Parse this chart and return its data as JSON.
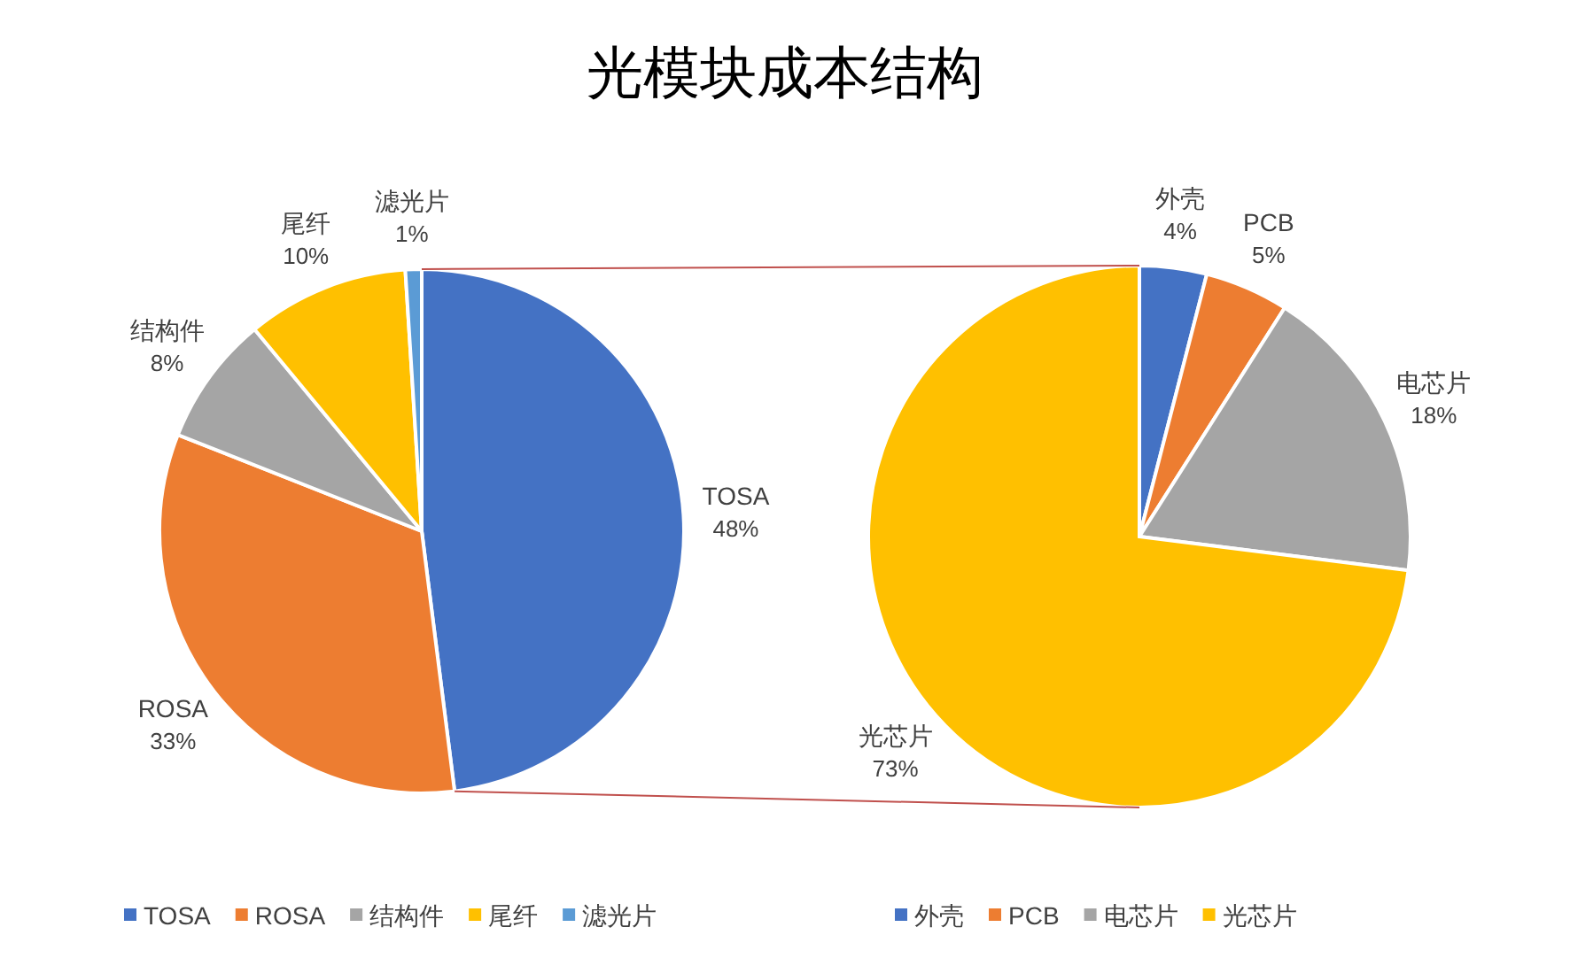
{
  "chart_data": [
    {
      "type": "pie",
      "title": "光模块成本结构",
      "categories": [
        "TOSA",
        "ROSA",
        "结构件",
        "尾纤",
        "滤光片"
      ],
      "values": [
        48,
        33,
        8,
        10,
        1
      ],
      "value_labels": [
        "48%",
        "33%",
        "8%",
        "10%",
        "1%"
      ],
      "colors": [
        "#4472c4",
        "#ed7d31",
        "#a5a5a5",
        "#ffc000",
        "#5b9bd5"
      ],
      "legend": "bottom"
    },
    {
      "type": "pie",
      "categories": [
        "外壳",
        "PCB",
        "电芯片",
        "光芯片"
      ],
      "values": [
        4,
        5,
        18,
        73
      ],
      "value_labels": [
        "4%",
        "5%",
        "18%",
        "73%"
      ],
      "colors": [
        "#4472c4",
        "#ed7d31",
        "#a5a5a5",
        "#ffc000"
      ],
      "legend": "bottom"
    }
  ]
}
